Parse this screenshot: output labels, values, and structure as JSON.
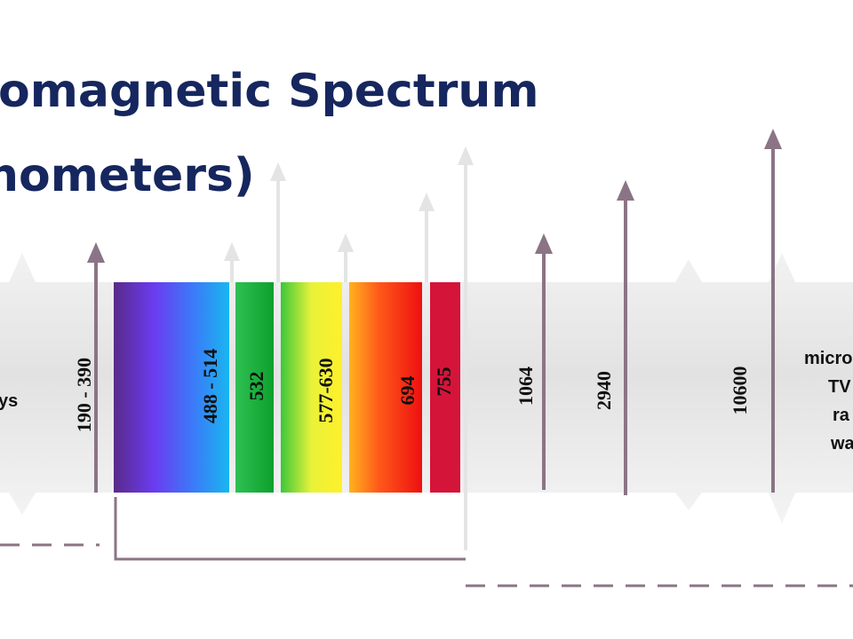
{
  "header": {
    "title_lines": [
      "omagnetic Spectrum",
      "nometers)"
    ]
  },
  "left_label": "ys",
  "wavelength_labels": [
    "190 - 390",
    "488 - 514",
    "532",
    "577-630",
    "694",
    "755",
    "1064",
    "2940",
    "10600"
  ],
  "right_labels": [
    "micro",
    "TV",
    "ra",
    "wa"
  ]
}
